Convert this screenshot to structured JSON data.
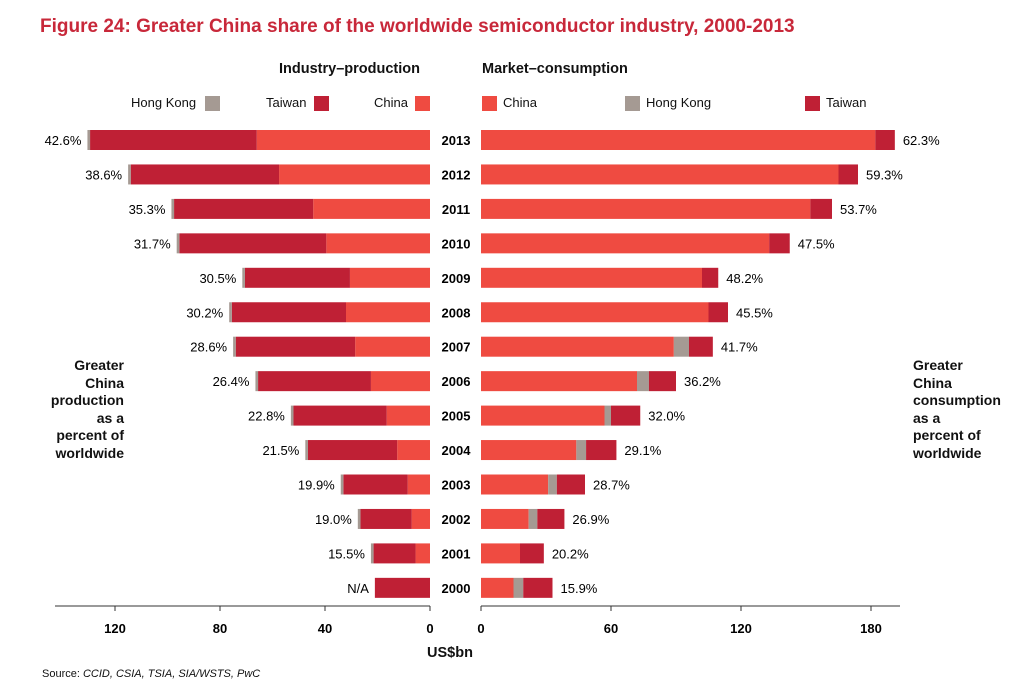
{
  "title": "Figure 24: Greater China share of the worldwide semiconductor industry, 2000-2013",
  "source_prefix": "Source: ",
  "source_text": "CCID, CSIA, TSIA, SIA/WSTS, PwC",
  "unit_label": "US$bn",
  "left_panel": {
    "title": "Industry–production",
    "side_label": "Greater\nChina\nproduction\nas a\npercent of\nworldwide",
    "legend": [
      "Hong Kong",
      "Taiwan",
      "China"
    ],
    "ticks": [
      "120",
      "80",
      "40",
      "0"
    ]
  },
  "right_panel": {
    "title": "Market–consumption",
    "side_label": "Greater\nChina\nconsumption\nas a\npercent of\nworldwide",
    "legend": [
      "China",
      "Hong Kong",
      "Taiwan"
    ],
    "ticks": [
      "0",
      "60",
      "120",
      "180"
    ]
  },
  "colors": {
    "china": "#ef4b41",
    "taiwan": "#bf2035",
    "hongkong": "#a59a93",
    "title": "#c8283a"
  },
  "chart_data": [
    {
      "type": "bar",
      "orientation": "horizontal",
      "stacked": true,
      "direction": "leftward",
      "title": "Industry–production",
      "xlabel": "US$bn",
      "xlim": [
        0,
        130
      ],
      "categories": [
        "2013",
        "2012",
        "2011",
        "2010",
        "2009",
        "2008",
        "2007",
        "2006",
        "2005",
        "2004",
        "2003",
        "2002",
        "2001",
        "2000"
      ],
      "series": [
        {
          "name": "China",
          "values": [
            66,
            57.5,
            44.5,
            39.5,
            30.5,
            32,
            28.5,
            22.5,
            16.5,
            12.5,
            8.5,
            7,
            5.5,
            0
          ]
        },
        {
          "name": "Taiwan",
          "values": [
            63.5,
            56.5,
            53,
            56,
            40,
            43.5,
            45.5,
            43,
            35.5,
            34,
            24.5,
            19.5,
            16,
            21
          ]
        },
        {
          "name": "Hong Kong",
          "values": [
            1,
            1,
            1,
            1,
            1,
            1,
            1,
            1,
            1,
            1,
            1,
            1,
            1,
            0
          ]
        }
      ],
      "data_labels": [
        "42.6%",
        "38.6%",
        "35.3%",
        "31.7%",
        "30.5%",
        "30.2%",
        "28.6%",
        "26.4%",
        "22.8%",
        "21.5%",
        "19.9%",
        "19.0%",
        "15.5%",
        "N/A"
      ]
    },
    {
      "type": "bar",
      "orientation": "horizontal",
      "stacked": true,
      "title": "Market–consumption",
      "xlabel": "US$bn",
      "xlim": [
        0,
        200
      ],
      "categories": [
        "2013",
        "2012",
        "2011",
        "2010",
        "2009",
        "2008",
        "2007",
        "2006",
        "2005",
        "2004",
        "2003",
        "2002",
        "2001",
        "2000"
      ],
      "series": [
        {
          "name": "China",
          "values": [
            182,
            165,
            152,
            133,
            102,
            105,
            89,
            72,
            57,
            44,
            31,
            22,
            18,
            15
          ]
        },
        {
          "name": "Hong Kong",
          "values": [
            0,
            0,
            0,
            0,
            0,
            0,
            7,
            5.5,
            3,
            4.5,
            4,
            4,
            0,
            4.5
          ]
        },
        {
          "name": "Taiwan",
          "values": [
            9,
            9,
            10,
            9.5,
            7.5,
            9,
            11,
            12.5,
            13.5,
            14,
            13,
            12.5,
            11,
            13.5
          ]
        }
      ],
      "data_labels": [
        "62.3%",
        "59.3%",
        "53.7%",
        "47.5%",
        "48.2%",
        "45.5%",
        "41.7%",
        "36.2%",
        "32.0%",
        "29.1%",
        "28.7%",
        "26.9%",
        "20.2%",
        "15.9%"
      ]
    }
  ]
}
